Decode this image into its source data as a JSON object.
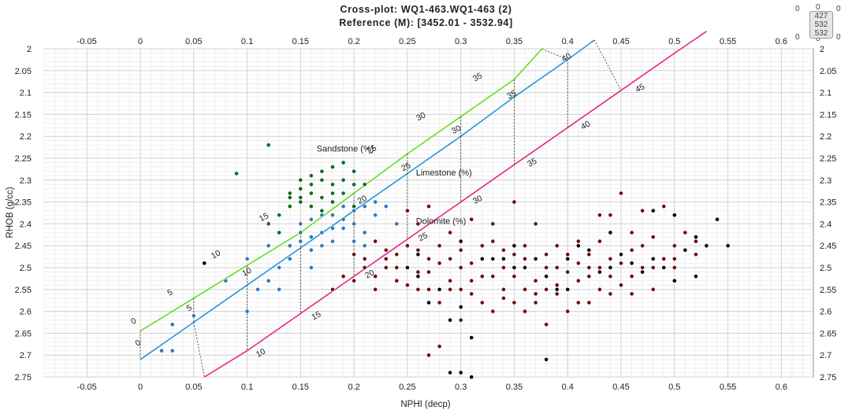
{
  "chart": {
    "title": "Cross-plot: WQ1-463.WQ1-463 (2)",
    "subtitle": "Reference (M): [3452.01 - 3532.94]",
    "corner": {
      "zeros": [
        "0",
        "0",
        "0",
        "0",
        "0",
        "0"
      ],
      "values": [
        "427",
        "532",
        "532"
      ]
    }
  },
  "chart_data": {
    "type": "scatter",
    "title": "Cross-plot: WQ1-463.WQ1-463 (2)",
    "subtitle": "Reference (M): [3452.01 - 3532.94]",
    "xlabel": "NPHI (decp)",
    "ylabel": "RHOB (g/cc)",
    "xlim": [
      -0.09,
      0.63
    ],
    "ylim": [
      2.75,
      2.0
    ],
    "y_inverted": true,
    "grid": true,
    "x_ticks": [
      "-0.05",
      "0",
      "0.05",
      "0.1",
      "0.15",
      "0.2",
      "0.25",
      "0.3",
      "0.35",
      "0.4",
      "0.45",
      "0.5",
      "0.55",
      "0.6"
    ],
    "y_ticks": [
      "2",
      "2.05",
      "2.1",
      "2.15",
      "2.2",
      "2.25",
      "2.3",
      "2.35",
      "2.4",
      "2.45",
      "2.5",
      "2.55",
      "2.6",
      "2.65",
      "2.7",
      "2.75"
    ],
    "lithology_lines": [
      {
        "name": "Sandstone (%)",
        "color": "#66dd22",
        "points": [
          [
            0.0,
            2.645
          ],
          [
            0.05,
            2.57
          ],
          [
            0.1,
            2.495
          ],
          [
            0.15,
            2.42
          ],
          [
            0.2,
            2.33
          ],
          [
            0.25,
            2.24
          ],
          [
            0.3,
            2.155
          ],
          [
            0.35,
            2.07
          ],
          [
            0.376,
            2.0
          ]
        ],
        "labels": [
          [
            "0",
            -0.007,
            2.63
          ],
          [
            "5",
            0.027,
            2.565
          ],
          [
            "10",
            0.068,
            2.48
          ],
          [
            "15",
            0.113,
            2.395
          ],
          [
            "25",
            0.214,
            2.24
          ],
          [
            "30",
            0.26,
            2.165
          ],
          [
            "35",
            0.313,
            2.075
          ]
        ]
      },
      {
        "name": "Limestone (%)",
        "color": "#2299dd",
        "points": [
          [
            0.0,
            2.71
          ],
          [
            0.05,
            2.625
          ],
          [
            0.1,
            2.54
          ],
          [
            0.15,
            2.455
          ],
          [
            0.2,
            2.37
          ],
          [
            0.25,
            2.285
          ],
          [
            0.3,
            2.2
          ],
          [
            0.35,
            2.11
          ],
          [
            0.4,
            2.025
          ],
          [
            0.425,
            1.98
          ]
        ],
        "labels": [
          [
            "0",
            -0.003,
            2.68
          ],
          [
            "5",
            0.045,
            2.6
          ],
          [
            "10",
            0.097,
            2.52
          ],
          [
            "20",
            0.205,
            2.355
          ],
          [
            "25",
            0.246,
            2.28
          ],
          [
            "30",
            0.293,
            2.195
          ],
          [
            "35",
            0.345,
            2.115
          ],
          [
            "40",
            0.396,
            2.03
          ]
        ]
      },
      {
        "name": "Dolomite (%)",
        "color": "#e8228a",
        "points": [
          [
            0.06,
            2.75
          ],
          [
            0.1,
            2.69
          ],
          [
            0.15,
            2.605
          ],
          [
            0.2,
            2.52
          ],
          [
            0.25,
            2.435
          ],
          [
            0.3,
            2.35
          ],
          [
            0.35,
            2.265
          ],
          [
            0.4,
            2.18
          ],
          [
            0.45,
            2.095
          ],
          [
            0.5,
            2.01
          ],
          [
            0.53,
            1.96
          ]
        ],
        "labels": [
          [
            "10",
            0.11,
            2.705
          ],
          [
            "15",
            0.162,
            2.62
          ],
          [
            "20",
            0.212,
            2.525
          ],
          [
            "25",
            0.262,
            2.44
          ],
          [
            "30",
            0.313,
            2.355
          ],
          [
            "35",
            0.364,
            2.27
          ],
          [
            "40",
            0.414,
            2.185
          ],
          [
            "45",
            0.465,
            2.1
          ]
        ]
      }
    ],
    "line_labels": [
      {
        "text": "Sandstone (%)",
        "x": 0.165,
        "y": 2.235
      },
      {
        "text": "Limestone (%)",
        "x": 0.258,
        "y": 2.29
      },
      {
        "text": "Dolomite (%)",
        "x": 0.258,
        "y": 2.4
      }
    ],
    "series": [
      {
        "name": "",
        "color": "#0d6b1b",
        "points": [
          [
            0.12,
            2.22
          ],
          [
            0.09,
            2.285
          ],
          [
            0.16,
            2.31
          ],
          [
            0.17,
            2.28
          ],
          [
            0.18,
            2.27
          ],
          [
            0.19,
            2.26
          ],
          [
            0.2,
            2.28
          ],
          [
            0.15,
            2.3
          ],
          [
            0.14,
            2.33
          ],
          [
            0.16,
            2.33
          ],
          [
            0.17,
            2.34
          ],
          [
            0.18,
            2.31
          ],
          [
            0.15,
            2.35
          ],
          [
            0.14,
            2.36
          ],
          [
            0.13,
            2.38
          ],
          [
            0.16,
            2.36
          ],
          [
            0.18,
            2.35
          ],
          [
            0.19,
            2.3
          ],
          [
            0.2,
            2.31
          ],
          [
            0.17,
            2.3
          ],
          [
            0.13,
            2.42
          ],
          [
            0.12,
            2.4
          ],
          [
            0.15,
            2.32
          ],
          [
            0.19,
            2.33
          ],
          [
            0.21,
            2.31
          ],
          [
            0.16,
            2.29
          ],
          [
            0.14,
            2.34
          ],
          [
            0.18,
            2.33
          ],
          [
            0.2,
            2.36
          ],
          [
            0.17,
            2.37
          ],
          [
            0.12,
            2.45
          ],
          [
            0.15,
            2.34
          ]
        ]
      },
      {
        "name": "",
        "color": "#3377bb",
        "points": [
          [
            0.03,
            2.63
          ],
          [
            0.02,
            2.69
          ],
          [
            0.05,
            2.61
          ],
          [
            0.1,
            2.48
          ],
          [
            0.14,
            2.45
          ],
          [
            0.15,
            2.44
          ],
          [
            0.16,
            2.43
          ],
          [
            0.17,
            2.42
          ],
          [
            0.18,
            2.41
          ],
          [
            0.19,
            2.39
          ],
          [
            0.2,
            2.37
          ],
          [
            0.21,
            2.36
          ],
          [
            0.22,
            2.35
          ],
          [
            0.23,
            2.36
          ],
          [
            0.24,
            2.4
          ],
          [
            0.15,
            2.4
          ],
          [
            0.17,
            2.38
          ],
          [
            0.19,
            2.41
          ],
          [
            0.2,
            2.44
          ],
          [
            0.21,
            2.42
          ],
          [
            0.13,
            2.5
          ],
          [
            0.12,
            2.53
          ],
          [
            0.11,
            2.55
          ],
          [
            0.13,
            2.55
          ],
          [
            0.16,
            2.46
          ],
          [
            0.18,
            2.44
          ],
          [
            0.22,
            2.38
          ],
          [
            0.14,
            2.48
          ],
          [
            0.16,
            2.5
          ],
          [
            0.08,
            2.53
          ],
          [
            0.1,
            2.6
          ],
          [
            0.12,
            2.45
          ],
          [
            0.2,
            2.4
          ],
          [
            0.21,
            2.45
          ],
          [
            0.17,
            2.45
          ],
          [
            0.03,
            2.69
          ],
          [
            0.15,
            2.42
          ],
          [
            0.19,
            2.36
          ],
          [
            0.16,
            2.39
          ],
          [
            0.18,
            2.38
          ]
        ]
      },
      {
        "name": "",
        "color": "#6b0f0f",
        "points": [
          [
            0.2,
            2.47
          ],
          [
            0.21,
            2.5
          ],
          [
            0.22,
            2.52
          ],
          [
            0.23,
            2.48
          ],
          [
            0.24,
            2.53
          ],
          [
            0.25,
            2.45
          ],
          [
            0.26,
            2.51
          ],
          [
            0.27,
            2.55
          ],
          [
            0.28,
            2.49
          ],
          [
            0.29,
            2.53
          ],
          [
            0.3,
            2.5
          ],
          [
            0.31,
            2.56
          ],
          [
            0.32,
            2.45
          ],
          [
            0.33,
            2.4
          ],
          [
            0.34,
            2.55
          ],
          [
            0.35,
            2.52
          ],
          [
            0.36,
            2.48
          ],
          [
            0.37,
            2.56
          ],
          [
            0.38,
            2.5
          ],
          [
            0.39,
            2.54
          ],
          [
            0.4,
            2.47
          ],
          [
            0.41,
            2.53
          ],
          [
            0.42,
            2.5
          ],
          [
            0.43,
            2.44
          ],
          [
            0.44,
            2.52
          ],
          [
            0.45,
            2.49
          ],
          [
            0.46,
            2.46
          ],
          [
            0.47,
            2.5
          ],
          [
            0.48,
            2.43
          ],
          [
            0.49,
            2.48
          ],
          [
            0.5,
            2.45
          ],
          [
            0.51,
            2.42
          ],
          [
            0.52,
            2.47
          ],
          [
            0.44,
            2.38
          ],
          [
            0.46,
            2.42
          ],
          [
            0.42,
            2.58
          ],
          [
            0.4,
            2.6
          ],
          [
            0.38,
            2.63
          ],
          [
            0.36,
            2.6
          ],
          [
            0.34,
            2.57
          ],
          [
            0.32,
            2.58
          ],
          [
            0.3,
            2.62
          ],
          [
            0.28,
            2.68
          ],
          [
            0.27,
            2.7
          ],
          [
            0.26,
            2.4
          ],
          [
            0.27,
            2.36
          ],
          [
            0.25,
            2.37
          ],
          [
            0.23,
            2.46
          ],
          [
            0.21,
            2.48
          ],
          [
            0.22,
            2.44
          ],
          [
            0.19,
            2.52
          ],
          [
            0.18,
            2.55
          ],
          [
            0.29,
            2.42
          ],
          [
            0.31,
            2.39
          ],
          [
            0.33,
            2.44
          ],
          [
            0.35,
            2.35
          ],
          [
            0.37,
            2.4
          ],
          [
            0.39,
            2.45
          ],
          [
            0.41,
            2.44
          ],
          [
            0.43,
            2.38
          ],
          [
            0.45,
            2.33
          ],
          [
            0.47,
            2.37
          ],
          [
            0.49,
            2.36
          ],
          [
            0.5,
            2.5
          ],
          [
            0.48,
            2.55
          ],
          [
            0.46,
            2.56
          ],
          [
            0.44,
            2.56
          ],
          [
            0.42,
            2.52
          ],
          [
            0.4,
            2.55
          ],
          [
            0.38,
            2.47
          ],
          [
            0.36,
            2.55
          ],
          [
            0.34,
            2.5
          ],
          [
            0.32,
            2.52
          ],
          [
            0.3,
            2.46
          ],
          [
            0.28,
            2.58
          ],
          [
            0.26,
            2.55
          ],
          [
            0.24,
            2.5
          ],
          [
            0.45,
            2.47
          ],
          [
            0.43,
            2.5
          ],
          [
            0.41,
            2.49
          ],
          [
            0.39,
            2.5
          ],
          [
            0.37,
            2.53
          ],
          [
            0.35,
            2.58
          ],
          [
            0.33,
            2.6
          ],
          [
            0.31,
            2.53
          ],
          [
            0.29,
            2.48
          ],
          [
            0.27,
            2.51
          ],
          [
            0.25,
            2.54
          ],
          [
            0.23,
            2.5
          ],
          [
            0.52,
            2.44
          ],
          [
            0.5,
            2.48
          ],
          [
            0.48,
            2.5
          ],
          [
            0.46,
            2.52
          ],
          [
            0.44,
            2.48
          ],
          [
            0.42,
            2.47
          ],
          [
            0.4,
            2.51
          ],
          [
            0.38,
            2.55
          ],
          [
            0.36,
            2.45
          ],
          [
            0.34,
            2.46
          ],
          [
            0.32,
            2.48
          ],
          [
            0.3,
            2.55
          ],
          [
            0.28,
            2.45
          ],
          [
            0.26,
            2.46
          ],
          [
            0.24,
            2.47
          ],
          [
            0.22,
            2.55
          ],
          [
            0.2,
            2.53
          ],
          [
            0.47,
            2.45
          ],
          [
            0.45,
            2.54
          ],
          [
            0.43,
            2.55
          ],
          [
            0.41,
            2.58
          ],
          [
            0.39,
            2.56
          ],
          [
            0.37,
            2.58
          ],
          [
            0.35,
            2.47
          ],
          [
            0.33,
            2.52
          ],
          [
            0.31,
            2.49
          ],
          [
            0.29,
            2.55
          ],
          [
            0.27,
            2.48
          ]
        ]
      },
      {
        "name": "",
        "color": "#000000",
        "points": [
          [
            0.06,
            2.49
          ],
          [
            0.25,
            2.5
          ],
          [
            0.26,
            2.47
          ],
          [
            0.3,
            2.44
          ],
          [
            0.32,
            2.48
          ],
          [
            0.35,
            2.45
          ],
          [
            0.36,
            2.5
          ],
          [
            0.38,
            2.52
          ],
          [
            0.4,
            2.48
          ],
          [
            0.42,
            2.46
          ],
          [
            0.43,
            2.51
          ],
          [
            0.44,
            2.5
          ],
          [
            0.45,
            2.47
          ],
          [
            0.46,
            2.49
          ],
          [
            0.47,
            2.51
          ],
          [
            0.48,
            2.48
          ],
          [
            0.49,
            2.5
          ],
          [
            0.5,
            2.53
          ],
          [
            0.51,
            2.46
          ],
          [
            0.52,
            2.43
          ],
          [
            0.53,
            2.45
          ],
          [
            0.54,
            2.39
          ],
          [
            0.55,
            2.45
          ],
          [
            0.52,
            2.52
          ],
          [
            0.5,
            2.38
          ],
          [
            0.48,
            2.37
          ],
          [
            0.44,
            2.42
          ],
          [
            0.41,
            2.45
          ],
          [
            0.39,
            2.55
          ],
          [
            0.37,
            2.48
          ],
          [
            0.33,
            2.48
          ],
          [
            0.31,
            2.66
          ],
          [
            0.3,
            2.59
          ],
          [
            0.29,
            2.62
          ],
          [
            0.28,
            2.55
          ],
          [
            0.27,
            2.58
          ],
          [
            0.26,
            2.52
          ],
          [
            0.38,
            2.71
          ],
          [
            0.3,
            2.74
          ],
          [
            0.29,
            2.74
          ],
          [
            0.31,
            2.75
          ],
          [
            0.35,
            2.5
          ],
          [
            0.34,
            2.48
          ],
          [
            0.4,
            2.55
          ]
        ]
      }
    ]
  }
}
